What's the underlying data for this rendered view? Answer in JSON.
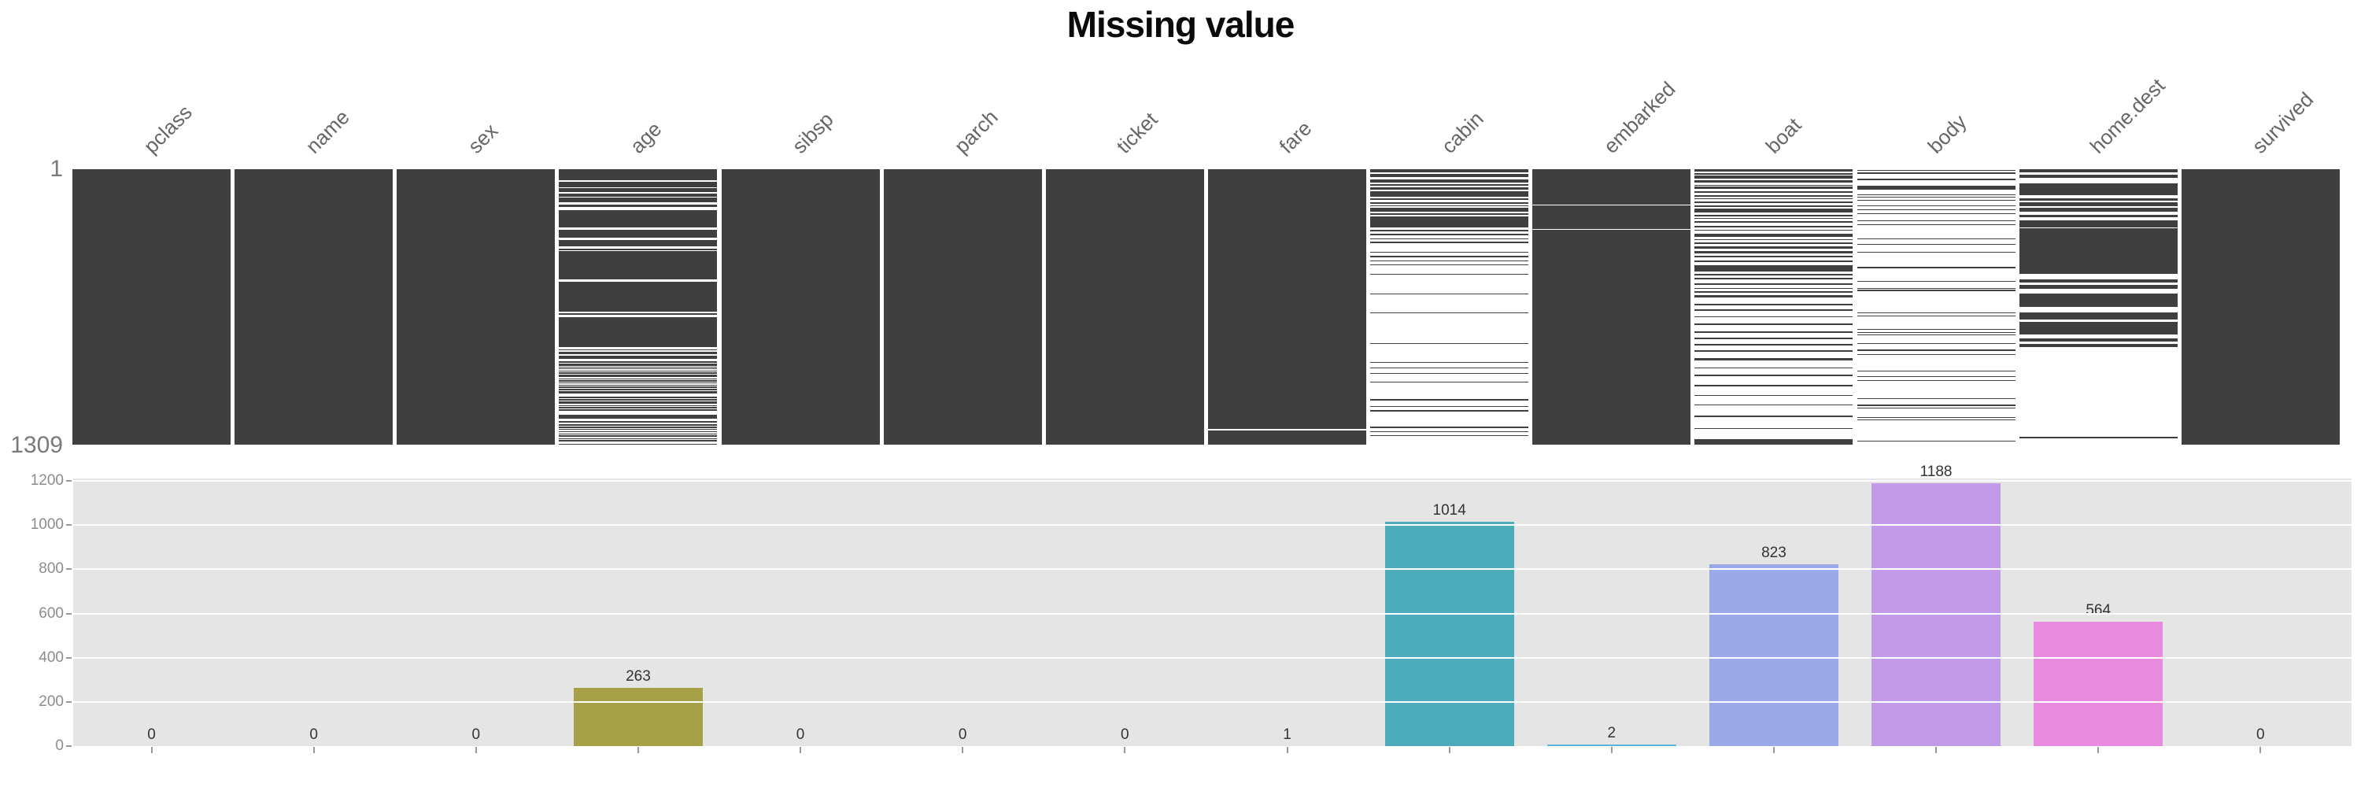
{
  "title": "Missing value",
  "matrix": {
    "top_row_label": "1",
    "bottom_row_label": "1309",
    "present_color": "#3f3f3f",
    "missing_color": "#ffffff"
  },
  "chart": {
    "background": "#e5e5e5",
    "gridline_color": "#ffffff",
    "y_ticks": [
      0,
      200,
      400,
      600,
      800,
      1000,
      1200
    ]
  },
  "columns": [
    {
      "name": "pclass",
      "missing": 0,
      "bar_color": null,
      "base": "dark",
      "stripes": []
    },
    {
      "name": "name",
      "missing": 0,
      "bar_color": null,
      "base": "dark",
      "stripes": []
    },
    {
      "name": "sex",
      "missing": 0,
      "bar_color": null,
      "base": "dark",
      "stripes": []
    },
    {
      "name": "age",
      "missing": 263,
      "bar_color": "#a6a046",
      "base": "dark",
      "stripes": [
        [
          4.1,
          0.6
        ],
        [
          6.6,
          0.4
        ],
        [
          8.4,
          0.4
        ],
        [
          9.9,
          0.4
        ],
        [
          12.0,
          0.8
        ],
        [
          13.7,
          1.1
        ],
        [
          21.2,
          0.9
        ],
        [
          24.9,
          0.9
        ],
        [
          28.1,
          0.9
        ],
        [
          29.3,
          0.4
        ],
        [
          40.1,
          0.9
        ],
        [
          51.8,
          0.6
        ],
        [
          52.9,
          0.9
        ],
        [
          64.6,
          0.9
        ],
        [
          65.8,
          0.4
        ],
        [
          67.2,
          0.4
        ],
        [
          68.9,
          0.9
        ],
        [
          70.3,
          0.4
        ],
        [
          71.3,
          0.4
        ],
        [
          72.0,
          0.4
        ],
        [
          72.7,
          0.4
        ],
        [
          73.4,
          0.4
        ],
        [
          74.2,
          0.4
        ],
        [
          75.5,
          0.4
        ],
        [
          76.3,
          0.4
        ],
        [
          77.0,
          0.4
        ],
        [
          77.8,
          0.4
        ],
        [
          78.6,
          0.4
        ],
        [
          79.4,
          0.4
        ],
        [
          80.2,
          0.4
        ],
        [
          81.4,
          1.2
        ],
        [
          83.1,
          0.4
        ],
        [
          84.0,
          0.4
        ],
        [
          85.2,
          0.4
        ],
        [
          86.0,
          0.4
        ],
        [
          86.8,
          0.4
        ],
        [
          87.8,
          1.4
        ],
        [
          90.7,
          0.6
        ],
        [
          92.1,
          0.4
        ],
        [
          93.1,
          0.4
        ],
        [
          94.0,
          0.4
        ],
        [
          94.7,
          0.4
        ],
        [
          95.5,
          0.4
        ],
        [
          96.3,
          0.4
        ],
        [
          97.2,
          0.4
        ],
        [
          98.0,
          0.4
        ],
        [
          98.9,
          0.4
        ],
        [
          99.4,
          0.4
        ]
      ]
    },
    {
      "name": "sibsp",
      "missing": 0,
      "bar_color": null,
      "base": "dark",
      "stripes": []
    },
    {
      "name": "parch",
      "missing": 0,
      "bar_color": null,
      "base": "dark",
      "stripes": []
    },
    {
      "name": "ticket",
      "missing": 0,
      "bar_color": null,
      "base": "dark",
      "stripes": []
    },
    {
      "name": "fare",
      "missing": 1,
      "bar_color": null,
      "base": "dark",
      "stripes": [
        [
          94.3,
          0.5
        ]
      ]
    },
    {
      "name": "cabin",
      "missing": 1014,
      "bar_color": "#4dacb9",
      "base": "white",
      "stripes": [
        [
          0,
          1.2
        ],
        [
          1.8,
          1.2
        ],
        [
          3.6,
          1.4
        ],
        [
          5.5,
          0.5
        ],
        [
          6.5,
          1.0
        ],
        [
          8.0,
          2.0
        ],
        [
          10.5,
          0.5
        ],
        [
          12.0,
          0.5
        ],
        [
          13.0,
          0.5
        ],
        [
          14.0,
          1.5
        ],
        [
          16.0,
          0.5
        ],
        [
          17.0,
          4.0
        ],
        [
          22.0,
          0.5
        ],
        [
          23.5,
          0.5
        ],
        [
          25.0,
          0.5
        ],
        [
          26.3,
          0.5
        ],
        [
          30.0,
          0.4
        ],
        [
          31.5,
          0.4
        ],
        [
          33.0,
          0.4
        ],
        [
          34.5,
          0.4
        ],
        [
          38.0,
          0.4
        ],
        [
          45.0,
          0.3
        ],
        [
          52.0,
          0.4
        ],
        [
          63.0,
          0.3
        ],
        [
          70.0,
          0.4
        ],
        [
          72.0,
          0.4
        ],
        [
          74.0,
          0.4
        ],
        [
          77.0,
          0.4
        ],
        [
          83.5,
          0.4
        ],
        [
          86.0,
          0.4
        ],
        [
          87.5,
          0.4
        ],
        [
          93.5,
          0.4
        ],
        [
          95.0,
          0.4
        ],
        [
          96.5,
          0.4
        ]
      ]
    },
    {
      "name": "embarked",
      "missing": 2,
      "bar_color": "#58b8d9",
      "base": "dark",
      "stripes": [
        [
          12.8,
          0.29
        ],
        [
          21.7,
          0.29
        ]
      ]
    },
    {
      "name": "boat",
      "missing": 823,
      "bar_color": "#9ca9e9",
      "base": "white",
      "stripes": [
        [
          0,
          0.9
        ],
        [
          1.4,
          0.5
        ],
        [
          2.3,
          1.0
        ],
        [
          4.0,
          0.9
        ],
        [
          5.6,
          0.3
        ],
        [
          6.3,
          0.9
        ],
        [
          7.9,
          0.7
        ],
        [
          9.3,
          0.7
        ],
        [
          10.5,
          0.4
        ],
        [
          11.6,
          0.7
        ],
        [
          13.0,
          0.7
        ],
        [
          14.4,
          1.4
        ],
        [
          16.5,
          0.5
        ],
        [
          17.7,
          0.4
        ],
        [
          18.8,
          0.7
        ],
        [
          20.5,
          0.7
        ],
        [
          21.9,
          0.4
        ],
        [
          23.3,
          1.4
        ],
        [
          25.3,
          0.5
        ],
        [
          26.7,
          0.5
        ],
        [
          28.1,
          0.7
        ],
        [
          29.8,
          0.7
        ],
        [
          31.4,
          0.7
        ],
        [
          33.0,
          0.7
        ],
        [
          34.9,
          2.3
        ],
        [
          38.1,
          0.5
        ],
        [
          39.5,
          0.5
        ],
        [
          41.4,
          0.7
        ],
        [
          43.0,
          0.5
        ],
        [
          44.4,
          0.5
        ],
        [
          45.8,
          0.7
        ],
        [
          48.8,
          0.5
        ],
        [
          50.9,
          0.5
        ],
        [
          53.3,
          0.4
        ],
        [
          56.0,
          0.7
        ],
        [
          58.8,
          0.5
        ],
        [
          61.2,
          0.4
        ],
        [
          63.5,
          0.5
        ],
        [
          65.8,
          0.5
        ],
        [
          68.6,
          0.7
        ],
        [
          71.9,
          0.4
        ],
        [
          74.7,
          0.4
        ],
        [
          78.4,
          0.4
        ],
        [
          81.9,
          0.4
        ],
        [
          85.4,
          0.4
        ],
        [
          89.5,
          0.5
        ],
        [
          94.0,
          0.4
        ],
        [
          97.9,
          2.1
        ]
      ]
    },
    {
      "name": "body",
      "missing": 1188,
      "bar_color": "#c19ae8",
      "base": "white",
      "stripes": [
        [
          0.3,
          0.4
        ],
        [
          1.2,
          0.4
        ],
        [
          3.5,
          0.4
        ],
        [
          6.0,
          1.5
        ],
        [
          9.0,
          0.4
        ],
        [
          10.0,
          0.4
        ],
        [
          11.0,
          0.4
        ],
        [
          13.0,
          0.4
        ],
        [
          14.5,
          0.4
        ],
        [
          16.0,
          0.4
        ],
        [
          18.5,
          0.4
        ],
        [
          20.0,
          0.4
        ],
        [
          25.0,
          0.4
        ],
        [
          27.0,
          0.4
        ],
        [
          30.0,
          0.4
        ],
        [
          35.5,
          0.4
        ],
        [
          40.5,
          0.4
        ],
        [
          43.0,
          0.4
        ],
        [
          43.8,
          0.4
        ],
        [
          52.0,
          0.4
        ],
        [
          53.0,
          0.4
        ],
        [
          58.0,
          0.4
        ],
        [
          59.0,
          0.4
        ],
        [
          60.0,
          0.4
        ],
        [
          63.0,
          0.4
        ],
        [
          65.5,
          0.4
        ],
        [
          67.0,
          0.4
        ],
        [
          73.0,
          0.4
        ],
        [
          75.0,
          0.4
        ],
        [
          76.5,
          0.4
        ],
        [
          83.0,
          0.4
        ],
        [
          85.5,
          0.4
        ],
        [
          86.5,
          0.4
        ],
        [
          90.0,
          0.4
        ],
        [
          90.8,
          0.4
        ],
        [
          98.5,
          0.4
        ]
      ]
    },
    {
      "name": "home.dest",
      "missing": 564,
      "bar_color": "#e88ade",
      "base": "white",
      "stripes": [
        [
          0,
          1.0
        ],
        [
          2.0,
          1.0
        ],
        [
          5.0,
          4.5
        ],
        [
          10.5,
          1.0
        ],
        [
          12.0,
          1.5
        ],
        [
          14.0,
          1.5
        ],
        [
          16.5,
          1.0
        ],
        [
          18.5,
          2.5
        ],
        [
          21.5,
          16.5
        ],
        [
          40.0,
          1.0
        ],
        [
          42.0,
          1.5
        ],
        [
          45.0,
          5.0
        ],
        [
          52.0,
          2.5
        ],
        [
          55.5,
          4.5
        ],
        [
          61.5,
          1.0
        ],
        [
          63.5,
          1.0
        ],
        [
          97.2,
          0.5
        ]
      ]
    },
    {
      "name": "survived",
      "missing": 0,
      "bar_color": null,
      "base": "dark",
      "stripes": []
    }
  ],
  "chart_data": [
    {
      "type": "heatmap",
      "subtype": "nullity-matrix",
      "title": "Missing value",
      "columns": [
        "pclass",
        "name",
        "sex",
        "age",
        "sibsp",
        "parch",
        "ticket",
        "fare",
        "cabin",
        "embarked",
        "boat",
        "body",
        "home.dest",
        "survived"
      ],
      "row_range": [
        1,
        1309
      ],
      "encoding": "dark = value present, white = value missing",
      "missing_counts": [
        0,
        0,
        0,
        263,
        0,
        0,
        0,
        1,
        1014,
        2,
        823,
        1188,
        564,
        0
      ]
    },
    {
      "type": "bar",
      "categories": [
        "pclass",
        "name",
        "sex",
        "age",
        "sibsp",
        "parch",
        "ticket",
        "fare",
        "cabin",
        "embarked",
        "boat",
        "body",
        "home.dest",
        "survived"
      ],
      "values": [
        0,
        0,
        0,
        263,
        0,
        0,
        0,
        1,
        1014,
        2,
        823,
        1188,
        564,
        0
      ],
      "title": "",
      "xlabel": "",
      "ylabel": "",
      "ylim": [
        0,
        1260
      ],
      "yticks": [
        0,
        200,
        400,
        600,
        800,
        1000,
        1200
      ],
      "grid": true,
      "legend": false,
      "bar_colors": [
        null,
        null,
        null,
        "#a6a046",
        null,
        null,
        null,
        null,
        "#4dacb9",
        "#58b8d9",
        "#9ca9e9",
        "#c19ae8",
        "#e88ade",
        null
      ],
      "data_labels": [
        "0",
        "0",
        "0",
        "263",
        "0",
        "0",
        "0",
        "1",
        "1014",
        "2",
        "823",
        "1188",
        "564",
        "0"
      ]
    }
  ]
}
